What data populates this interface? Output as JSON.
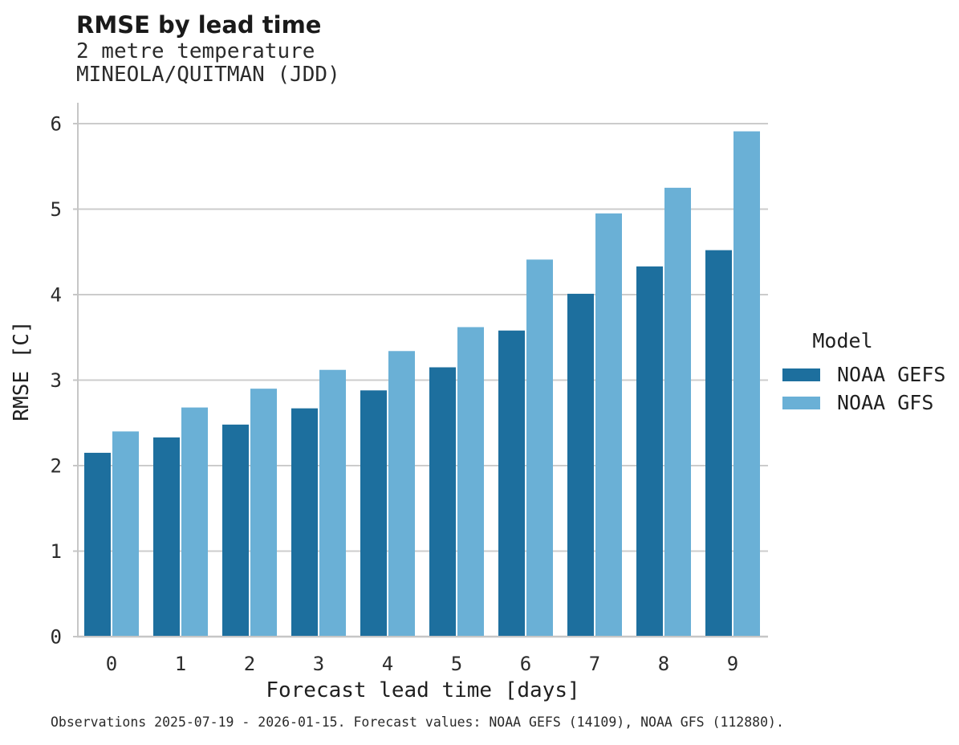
{
  "chart_data": {
    "type": "bar",
    "title": "RMSE by lead time",
    "subtitle_line1": "2 metre temperature",
    "subtitle_line2": "MINEOLA/QUITMAN (JDD)",
    "categories": [
      "0",
      "1",
      "2",
      "3",
      "4",
      "5",
      "6",
      "7",
      "8",
      "9"
    ],
    "series": [
      {
        "name": "NOAA GEFS",
        "color": "#1d6f9e",
        "values": [
          2.15,
          2.33,
          2.48,
          2.67,
          2.88,
          3.15,
          3.58,
          4.01,
          4.33,
          4.52
        ]
      },
      {
        "name": "NOAA GFS",
        "color": "#6ab0d6",
        "values": [
          2.4,
          2.68,
          2.9,
          3.12,
          3.34,
          3.62,
          4.41,
          4.95,
          5.25,
          5.91
        ]
      }
    ],
    "xlabel": "Forecast lead time [days]",
    "ylabel": "RMSE [C]",
    "ylim": [
      0,
      6
    ],
    "yticks": [
      0,
      1,
      2,
      3,
      4,
      5,
      6
    ],
    "grid": "horizontal",
    "legend_title": "Model",
    "legend_position": "right"
  },
  "footer": {
    "text": "Observations 2025-07-19 - 2026-01-15. Forecast values: NOAA GEFS (14109), NOAA GFS (112880)."
  },
  "colors": {
    "grid": "#cccccc",
    "axis": "#c6c6c6",
    "tick_text": "#2b2b2b",
    "background": "#ffffff"
  }
}
